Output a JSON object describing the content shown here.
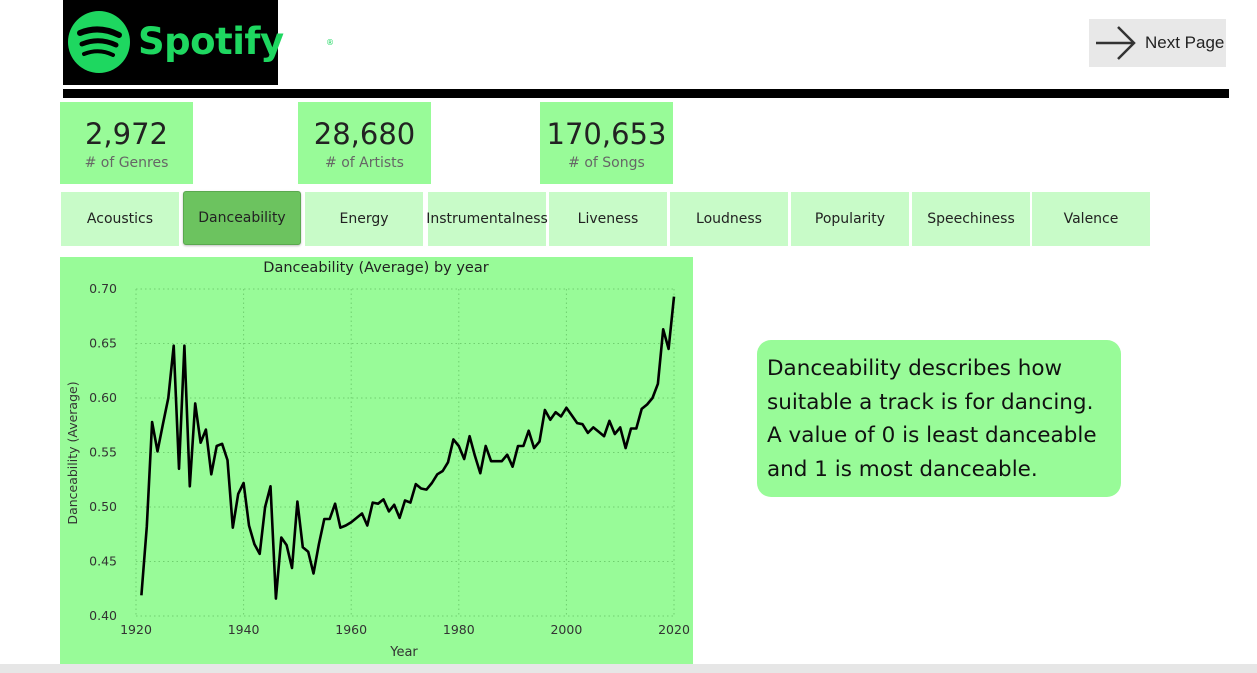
{
  "logo": {
    "text": "Spotify",
    "registered": "®",
    "icon": "spotify-logo-icon",
    "color": "#1ed760"
  },
  "nav": {
    "next_label": "Next Page",
    "icon": "arrow-right-icon"
  },
  "cards": [
    {
      "value": "2,972",
      "label": "# of Genres"
    },
    {
      "value": "28,680",
      "label": "# of Artists"
    },
    {
      "value": "170,653",
      "label": "# of Songs"
    }
  ],
  "tabs": [
    {
      "label": "Acoustics"
    },
    {
      "label": "Danceability",
      "active": true
    },
    {
      "label": "Energy"
    },
    {
      "label": "Instrumentalness"
    },
    {
      "label": "Liveness"
    },
    {
      "label": "Loudness"
    },
    {
      "label": "Popularity"
    },
    {
      "label": "Speechiness"
    },
    {
      "label": "Valence"
    }
  ],
  "description": "Danceability describes how suitable a track is for dancing. A value of 0 is least danceable and 1 is most danceable.",
  "colors": {
    "accent_green": "#98fb98",
    "tab_light": "#c8fbc8",
    "tab_active": "#6cc35f"
  },
  "chart_data": {
    "type": "line",
    "title": "Danceability (Average) by year",
    "xlabel": "Year",
    "ylabel": "Danceability (Average)",
    "xlim": [
      1920,
      2020
    ],
    "ylim": [
      0.4,
      0.7
    ],
    "xticks": [
      1920,
      1940,
      1960,
      1980,
      2000,
      2020
    ],
    "yticks": [
      0.4,
      0.45,
      0.5,
      0.55,
      0.6,
      0.65,
      0.7
    ],
    "ytick_labels": [
      "0.40",
      "0.45",
      "0.50",
      "0.55",
      "0.60",
      "0.65",
      "0.70"
    ],
    "grid": true,
    "series": [
      {
        "color": "#000000",
        "x": [
          1921,
          1922,
          1923,
          1924,
          1925,
          1926,
          1927,
          1928,
          1929,
          1930,
          1931,
          1932,
          1933,
          1934,
          1935,
          1936,
          1937,
          1938,
          1939,
          1940,
          1941,
          1942,
          1943,
          1944,
          1945,
          1946,
          1947,
          1948,
          1949,
          1950,
          1951,
          1952,
          1953,
          1954,
          1955,
          1956,
          1957,
          1958,
          1959,
          1960,
          1961,
          1962,
          1963,
          1964,
          1965,
          1966,
          1967,
          1968,
          1969,
          1970,
          1971,
          1972,
          1973,
          1974,
          1975,
          1976,
          1977,
          1978,
          1979,
          1980,
          1981,
          1982,
          1983,
          1984,
          1985,
          1986,
          1987,
          1988,
          1989,
          1990,
          1991,
          1992,
          1993,
          1994,
          1995,
          1996,
          1997,
          1998,
          1999,
          2000,
          2001,
          2002,
          2003,
          2004,
          2005,
          2006,
          2007,
          2008,
          2009,
          2010,
          2011,
          2012,
          2013,
          2014,
          2015,
          2016,
          2017,
          2018,
          2019,
          2020
        ],
        "y": [
          0.419,
          0.482,
          0.578,
          0.551,
          0.576,
          0.6,
          0.648,
          0.535,
          0.648,
          0.519,
          0.595,
          0.559,
          0.571,
          0.53,
          0.556,
          0.558,
          0.543,
          0.481,
          0.512,
          0.522,
          0.483,
          0.466,
          0.457,
          0.5,
          0.519,
          0.416,
          0.472,
          0.465,
          0.444,
          0.505,
          0.463,
          0.459,
          0.439,
          0.466,
          0.489,
          0.489,
          0.503,
          0.481,
          0.483,
          0.486,
          0.49,
          0.494,
          0.483,
          0.504,
          0.503,
          0.507,
          0.496,
          0.502,
          0.49,
          0.506,
          0.504,
          0.521,
          0.517,
          0.516,
          0.522,
          0.53,
          0.533,
          0.541,
          0.562,
          0.556,
          0.544,
          0.565,
          0.547,
          0.531,
          0.556,
          0.542,
          0.542,
          0.542,
          0.548,
          0.537,
          0.556,
          0.556,
          0.57,
          0.554,
          0.56,
          0.589,
          0.58,
          0.587,
          0.583,
          0.591,
          0.584,
          0.577,
          0.576,
          0.568,
          0.573,
          0.569,
          0.565,
          0.579,
          0.567,
          0.573,
          0.554,
          0.572,
          0.572,
          0.59,
          0.594,
          0.6,
          0.613,
          0.663,
          0.645,
          0.693
        ]
      }
    ]
  }
}
